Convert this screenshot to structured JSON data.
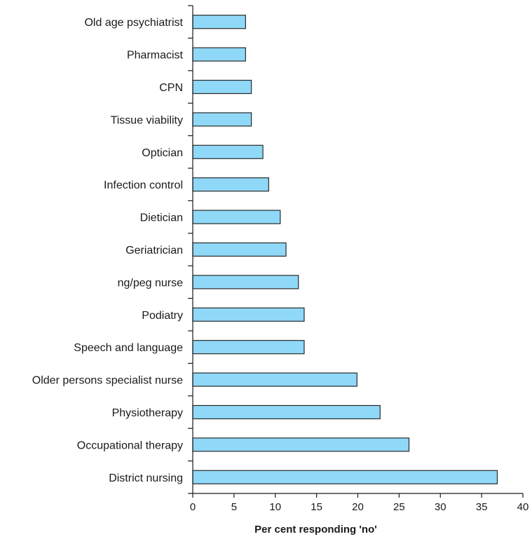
{
  "chart_data": {
    "type": "bar",
    "orientation": "horizontal",
    "categories": [
      "Old age psychiatrist",
      "Pharmacist",
      "CPN",
      "Tissue viability",
      "Optician",
      "Infection control",
      "Dietician",
      "Geriatrician",
      "ng/peg nurse",
      "Podiatry",
      "Speech and language",
      "Older persons specialist nurse",
      "Physiotherapy",
      "Occupational therapy",
      "District nursing"
    ],
    "values": [
      6.4,
      6.4,
      7.1,
      7.1,
      8.5,
      9.2,
      10.6,
      11.3,
      12.8,
      13.5,
      13.5,
      19.9,
      22.7,
      26.2,
      36.9
    ],
    "title": "",
    "xlabel": "Per cent responding 'no'",
    "ylabel": "",
    "xlim": [
      0,
      40
    ],
    "xticks": [
      "0",
      "5",
      "10",
      "15",
      "20",
      "25",
      "30",
      "35",
      "40"
    ],
    "grid": false,
    "bar_color": "#8fd8f8",
    "bar_edge_color": "#2a2a2a"
  }
}
